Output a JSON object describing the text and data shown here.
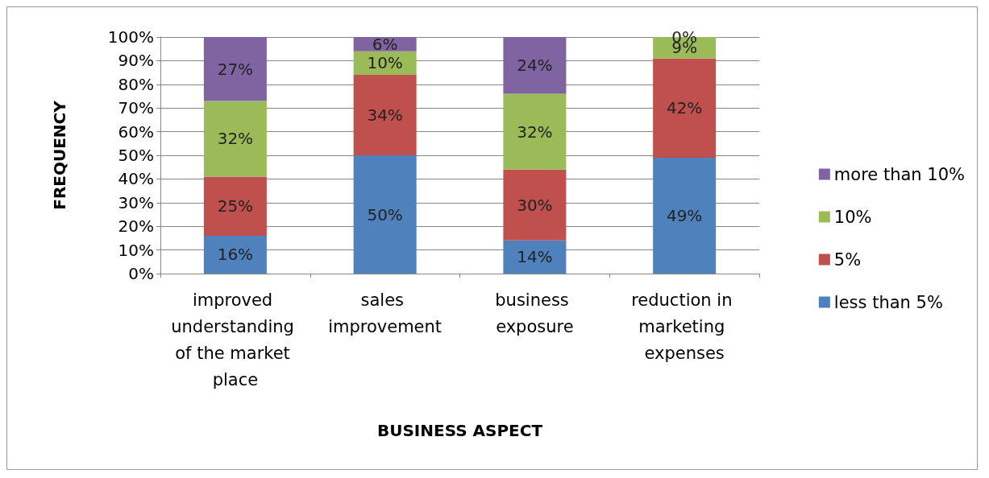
{
  "chart_data": {
    "type": "bar",
    "stacked": true,
    "xlabel": "BUSINESS ASPECT",
    "ylabel": "FREQUENCY",
    "categories": [
      "improved understanding of the market place",
      "sales improvement",
      "business exposure",
      "reduction in marketing expenses"
    ],
    "series": [
      {
        "name": "less than 5%",
        "color": "#4f81bd",
        "values": [
          16,
          50,
          14,
          49
        ],
        "value_labels": [
          "16%",
          "50%",
          "14%",
          "49%"
        ]
      },
      {
        "name": "5%",
        "color": "#c0504d",
        "values": [
          25,
          34,
          30,
          42
        ],
        "value_labels": [
          "25%",
          "34%",
          "30%",
          "42%"
        ]
      },
      {
        "name": "10%",
        "color": "#9bbb59",
        "values": [
          32,
          10,
          32,
          9
        ],
        "value_labels": [
          "32%",
          "10%",
          "32%",
          "9%"
        ]
      },
      {
        "name": "more than 10%",
        "color": "#8064a2",
        "values": [
          27,
          6,
          24,
          0
        ],
        "value_labels": [
          "27%",
          "6%",
          "24%",
          "0%"
        ]
      }
    ],
    "ylim": [
      0,
      100
    ],
    "yticks": [
      {
        "value": 0,
        "label": "0%"
      },
      {
        "value": 10,
        "label": "10%"
      },
      {
        "value": 20,
        "label": "20%"
      },
      {
        "value": 30,
        "label": "30%"
      },
      {
        "value": 40,
        "label": "40%"
      },
      {
        "value": 50,
        "label": "50%"
      },
      {
        "value": 60,
        "label": "60%"
      },
      {
        "value": 70,
        "label": "70%"
      },
      {
        "value": 80,
        "label": "80%"
      },
      {
        "value": 90,
        "label": "90%"
      },
      {
        "value": 100,
        "label": "100%"
      }
    ],
    "grid": "y",
    "legend": "right"
  }
}
